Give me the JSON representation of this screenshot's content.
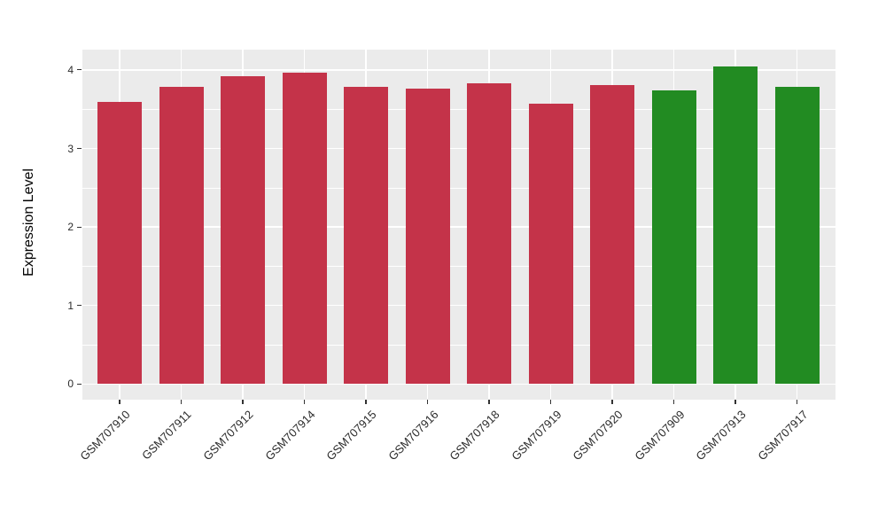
{
  "figure": {
    "background": "#FFFFFF"
  },
  "chart_data": {
    "type": "bar",
    "title": "",
    "xlabel": "",
    "ylabel": "Expression Level",
    "categories": [
      "GSM707910",
      "GSM707911",
      "GSM707912",
      "GSM707914",
      "GSM707915",
      "GSM707916",
      "GSM707918",
      "GSM707919",
      "GSM707920",
      "GSM707909",
      "GSM707913",
      "GSM707917"
    ],
    "values": [
      3.59,
      3.78,
      3.92,
      3.96,
      3.79,
      3.76,
      3.83,
      3.57,
      3.81,
      3.74,
      4.04,
      3.78
    ],
    "groups": [
      "red",
      "red",
      "red",
      "red",
      "red",
      "red",
      "red",
      "red",
      "red",
      "green",
      "green",
      "green"
    ],
    "group_colors": {
      "red": "#C43349",
      "green": "#228B22"
    },
    "yticks": [
      0,
      1,
      2,
      3,
      4
    ],
    "minor_yticks": [
      0.5,
      1.5,
      2.5,
      3.5
    ],
    "ylim": [
      -0.21,
      4.26
    ],
    "grid": true,
    "legend_position": "none",
    "panel_bg": "#EBEBEB",
    "grid_color": "#FFFFFF",
    "axis_text_color": "#2B2B2B",
    "x_label_rotation_deg": 45
  }
}
